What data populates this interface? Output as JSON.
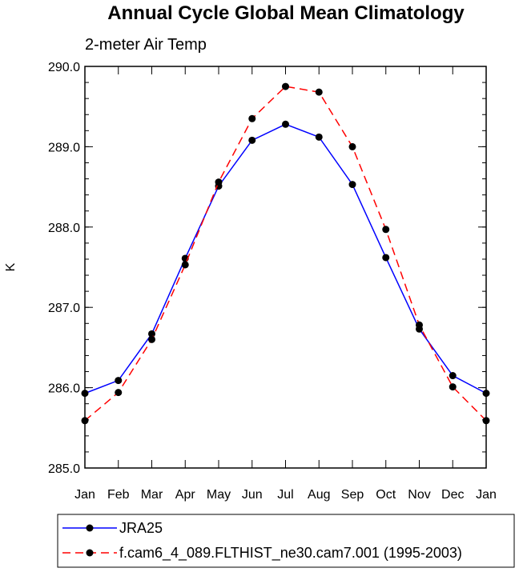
{
  "chart_data": {
    "type": "line",
    "title": "Annual Cycle Global Mean Climatology",
    "subtitle": "2-meter Air Temp",
    "xlabel": "",
    "ylabel": "K",
    "categories": [
      "Jan",
      "Feb",
      "Mar",
      "Apr",
      "May",
      "Jun",
      "Jul",
      "Aug",
      "Sep",
      "Oct",
      "Nov",
      "Dec",
      "Jan"
    ],
    "ylim": [
      285.0,
      290.0
    ],
    "yticks": [
      "285.0",
      "286.0",
      "287.0",
      "288.0",
      "289.0",
      "290.0"
    ],
    "legend_position": "bottom",
    "series": [
      {
        "name": "JRA25",
        "color": "#0000ff",
        "dash": "solid",
        "values": [
          285.93,
          286.09,
          286.67,
          287.61,
          288.51,
          289.08,
          289.28,
          289.12,
          288.53,
          287.62,
          286.73,
          286.15,
          285.93
        ]
      },
      {
        "name": "f.cam6_4_089.FLTHIST_ne30.cam7.001 (1995-2003)",
        "color": "#ff0000",
        "dash": "dashed",
        "values": [
          285.59,
          285.94,
          286.6,
          287.53,
          288.56,
          289.35,
          289.75,
          289.68,
          289.0,
          287.97,
          286.78,
          286.01,
          285.59
        ]
      }
    ]
  }
}
